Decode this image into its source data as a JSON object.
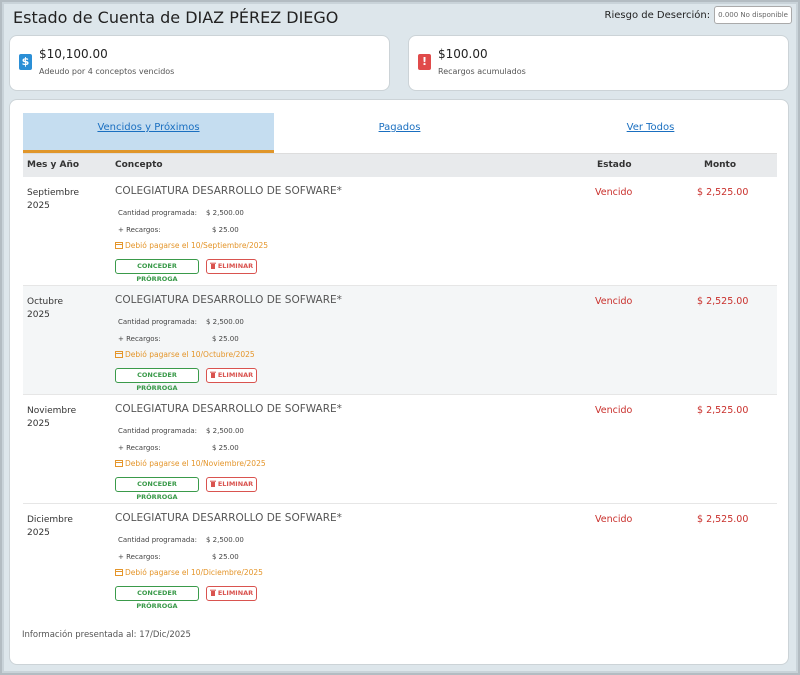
{
  "header": {
    "title": "Estado de Cuenta de DIAZ PÉREZ DIEGO",
    "risk_label": "Riesgo de Deserción:",
    "risk_value": "0.000 No disponible"
  },
  "summary": {
    "owed": {
      "amount": "$10,100.00",
      "desc": "Adeudo por 4 conceptos vencidos",
      "icon": "dollar-icon",
      "color": "#2b8fd6"
    },
    "surcharges": {
      "amount": "$100.00",
      "desc": "Recargos acumulados",
      "icon": "exclamation-icon",
      "color": "#e04b4b"
    }
  },
  "tabs": [
    {
      "label": "Vencidos y Próximos",
      "active": true
    },
    {
      "label": "Pagados",
      "active": false
    },
    {
      "label": "Ver Todos",
      "active": false
    }
  ],
  "table": {
    "headers": {
      "month": "Mes y Año",
      "concept": "Concepto",
      "status": "Estado",
      "amount": "Monto"
    },
    "detail_labels": {
      "scheduled": "Cantidad programada:",
      "surcharge": "+ Recargos:"
    },
    "buttons": {
      "grant": "CONCEDER PRÓRROGA",
      "delete": "ELIMINAR"
    },
    "rows": [
      {
        "month": "Septiembre",
        "year": "2025",
        "concept": "COLEGIATURA DESARROLLO DE SOFWARE*",
        "scheduled": "$ 2,500.00",
        "surcharge": "$ 25.00",
        "due": "Debió pagarse el 10/Septiembre/2025",
        "status": "Vencido",
        "amount": "$ 2,525.00"
      },
      {
        "month": "Octubre",
        "year": "2025",
        "concept": "COLEGIATURA DESARROLLO DE SOFWARE*",
        "scheduled": "$ 2,500.00",
        "surcharge": "$ 25.00",
        "due": "Debió pagarse el 10/Octubre/2025",
        "status": "Vencido",
        "amount": "$ 2,525.00"
      },
      {
        "month": "Noviembre",
        "year": "2025",
        "concept": "COLEGIATURA DESARROLLO DE SOFWARE*",
        "scheduled": "$ 2,500.00",
        "surcharge": "$ 25.00",
        "due": "Debió pagarse el 10/Noviembre/2025",
        "status": "Vencido",
        "amount": "$ 2,525.00"
      },
      {
        "month": "Diciembre",
        "year": "2025",
        "concept": "COLEGIATURA DESARROLLO DE SOFWARE*",
        "scheduled": "$ 2,500.00",
        "surcharge": "$ 25.00",
        "due": "Debió pagarse el 10/Diciembre/2025",
        "status": "Vencido",
        "amount": "$ 2,525.00"
      }
    ]
  },
  "footer": {
    "info": "Información presentada al: 17/Dic/2025"
  }
}
